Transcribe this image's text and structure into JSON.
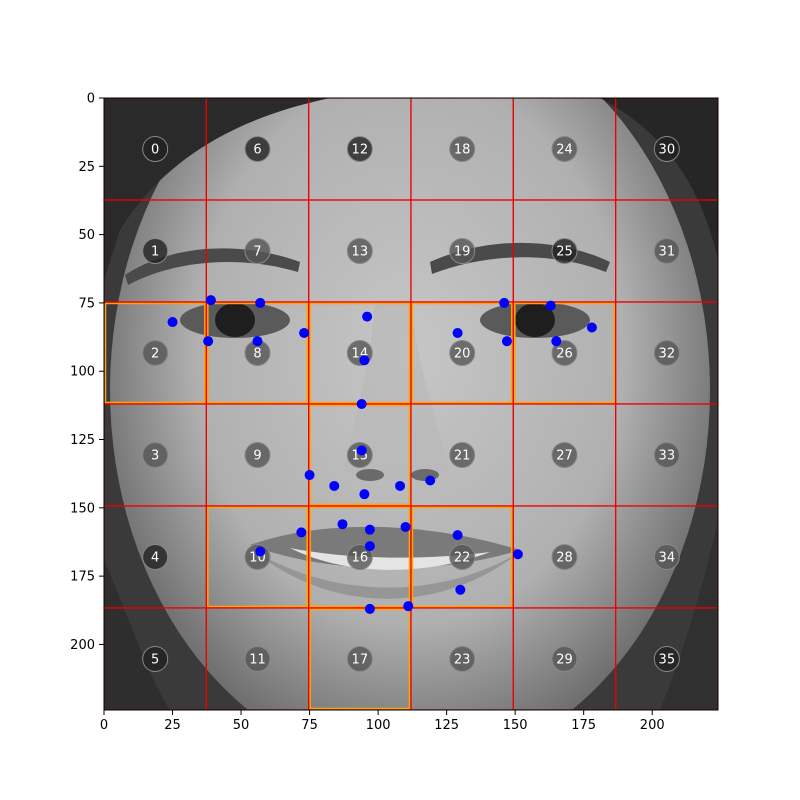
{
  "chart_data": {
    "type": "scatter",
    "title": "",
    "xlabel": "",
    "ylabel": "",
    "xlim": [
      0,
      224
    ],
    "ylim": [
      224,
      0
    ],
    "y_axis_inverted": true,
    "x_ticks": [
      0,
      25,
      50,
      75,
      100,
      125,
      150,
      175,
      200
    ],
    "y_ticks": [
      0,
      25,
      50,
      75,
      100,
      125,
      150,
      175,
      200
    ],
    "grid": {
      "rows": 6,
      "cols": 6,
      "cell_size": 37.33,
      "color": "#ee0000"
    },
    "highlighted_cells": [
      2,
      8,
      10,
      14,
      15,
      16,
      17,
      20,
      22,
      26
    ],
    "highlight_color": "#ffa500",
    "cell_markers": [
      {
        "id": "0",
        "x": 18.67,
        "y": 18.67,
        "tone": "dark"
      },
      {
        "id": "1",
        "x": 18.67,
        "y": 56.0,
        "tone": "dark"
      },
      {
        "id": "2",
        "x": 18.67,
        "y": 93.33,
        "tone": "mid"
      },
      {
        "id": "3",
        "x": 18.67,
        "y": 130.67,
        "tone": "mid"
      },
      {
        "id": "4",
        "x": 18.67,
        "y": 168.0,
        "tone": "dark"
      },
      {
        "id": "5",
        "x": 18.67,
        "y": 205.33,
        "tone": "dark"
      },
      {
        "id": "6",
        "x": 56.0,
        "y": 18.67,
        "tone": "dark"
      },
      {
        "id": "7",
        "x": 56.0,
        "y": 56.0,
        "tone": "mid"
      },
      {
        "id": "8",
        "x": 56.0,
        "y": 93.33,
        "tone": "mid"
      },
      {
        "id": "9",
        "x": 56.0,
        "y": 130.67,
        "tone": "mid"
      },
      {
        "id": "10",
        "x": 56.0,
        "y": 168.0,
        "tone": "mid"
      },
      {
        "id": "11",
        "x": 56.0,
        "y": 205.33,
        "tone": "mid"
      },
      {
        "id": "12",
        "x": 93.33,
        "y": 18.67,
        "tone": "dark"
      },
      {
        "id": "13",
        "x": 93.33,
        "y": 56.0,
        "tone": "mid"
      },
      {
        "id": "14",
        "x": 93.33,
        "y": 93.33,
        "tone": "mid"
      },
      {
        "id": "15",
        "x": 93.33,
        "y": 130.67,
        "tone": "mid"
      },
      {
        "id": "16",
        "x": 93.33,
        "y": 168.0,
        "tone": "mid"
      },
      {
        "id": "17",
        "x": 93.33,
        "y": 205.33,
        "tone": "mid"
      },
      {
        "id": "18",
        "x": 130.67,
        "y": 18.67,
        "tone": "mid"
      },
      {
        "id": "19",
        "x": 130.67,
        "y": 56.0,
        "tone": "mid"
      },
      {
        "id": "20",
        "x": 130.67,
        "y": 93.33,
        "tone": "mid"
      },
      {
        "id": "21",
        "x": 130.67,
        "y": 130.67,
        "tone": "mid"
      },
      {
        "id": "22",
        "x": 130.67,
        "y": 168.0,
        "tone": "mid"
      },
      {
        "id": "23",
        "x": 130.67,
        "y": 205.33,
        "tone": "mid"
      },
      {
        "id": "24",
        "x": 168.0,
        "y": 18.67,
        "tone": "mid"
      },
      {
        "id": "25",
        "x": 168.0,
        "y": 56.0,
        "tone": "dark"
      },
      {
        "id": "26",
        "x": 168.0,
        "y": 93.33,
        "tone": "mid"
      },
      {
        "id": "27",
        "x": 168.0,
        "y": 130.67,
        "tone": "mid"
      },
      {
        "id": "28",
        "x": 168.0,
        "y": 168.0,
        "tone": "mid"
      },
      {
        "id": "29",
        "x": 168.0,
        "y": 205.33,
        "tone": "mid"
      },
      {
        "id": "30",
        "x": 205.33,
        "y": 18.67,
        "tone": "dark"
      },
      {
        "id": "31",
        "x": 205.33,
        "y": 56.0,
        "tone": "mid"
      },
      {
        "id": "32",
        "x": 205.33,
        "y": 93.33,
        "tone": "mid"
      },
      {
        "id": "33",
        "x": 205.33,
        "y": 130.67,
        "tone": "mid"
      },
      {
        "id": "34",
        "x": 205.33,
        "y": 168.0,
        "tone": "mid"
      },
      {
        "id": "35",
        "x": 205.33,
        "y": 205.33,
        "tone": "dark"
      }
    ],
    "series": [
      {
        "marker": "circle",
        "color": "#0000ff",
        "points": [
          {
            "x": 25,
            "y": 82
          },
          {
            "x": 39,
            "y": 74
          },
          {
            "x": 57,
            "y": 75
          },
          {
            "x": 73,
            "y": 86
          },
          {
            "x": 56,
            "y": 89
          },
          {
            "x": 38,
            "y": 89
          },
          {
            "x": 146,
            "y": 75
          },
          {
            "x": 163,
            "y": 76
          },
          {
            "x": 178,
            "y": 84
          },
          {
            "x": 165,
            "y": 89
          },
          {
            "x": 147,
            "y": 89
          },
          {
            "x": 129,
            "y": 86
          },
          {
            "x": 96,
            "y": 80
          },
          {
            "x": 95,
            "y": 96
          },
          {
            "x": 94,
            "y": 112
          },
          {
            "x": 94,
            "y": 129
          },
          {
            "x": 75,
            "y": 138
          },
          {
            "x": 84,
            "y": 142
          },
          {
            "x": 95,
            "y": 145
          },
          {
            "x": 108,
            "y": 142
          },
          {
            "x": 119,
            "y": 140
          },
          {
            "x": 57,
            "y": 166
          },
          {
            "x": 72,
            "y": 159
          },
          {
            "x": 87,
            "y": 156
          },
          {
            "x": 97,
            "y": 158
          },
          {
            "x": 110,
            "y": 157
          },
          {
            "x": 129,
            "y": 160
          },
          {
            "x": 151,
            "y": 167
          },
          {
            "x": 130,
            "y": 180
          },
          {
            "x": 111,
            "y": 186
          },
          {
            "x": 97,
            "y": 187
          },
          {
            "x": 97,
            "y": 164
          }
        ]
      }
    ],
    "background": "grayscale face photograph",
    "legend": "none"
  }
}
